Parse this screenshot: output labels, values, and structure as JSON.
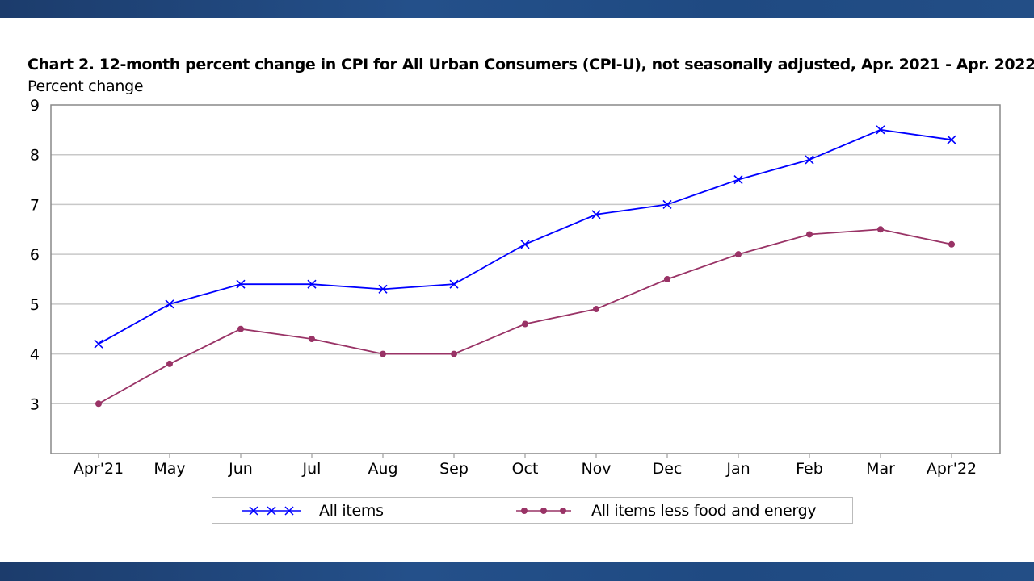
{
  "chart_data": {
    "type": "line",
    "title": "Chart 2. 12-month percent change in CPI for All Urban Consumers (CPI-U), not seasonally adjusted, Apr. 2021 - Apr. 2022",
    "xlabel": "",
    "ylabel": "Percent change",
    "categories": [
      "Apr'21",
      "May",
      "Jun",
      "Jul",
      "Aug",
      "Sep",
      "Oct",
      "Nov",
      "Dec",
      "Jan",
      "Feb",
      "Mar",
      "Apr'22"
    ],
    "ylim": [
      2,
      9
    ],
    "yticks": [
      3,
      4,
      5,
      6,
      7,
      8,
      9
    ],
    "grid": true,
    "legend_position": "bottom",
    "series": [
      {
        "name": "All items",
        "color": "#0000ff",
        "marker": "x",
        "values": [
          4.2,
          5.0,
          5.4,
          5.4,
          5.3,
          5.4,
          6.2,
          6.8,
          7.0,
          7.5,
          7.9,
          8.5,
          8.3
        ]
      },
      {
        "name": "All items less food and energy",
        "color": "#993366",
        "marker": "circle",
        "values": [
          3.0,
          3.8,
          4.5,
          4.3,
          4.0,
          4.0,
          4.6,
          4.9,
          5.5,
          6.0,
          6.4,
          6.5,
          6.2
        ]
      }
    ]
  },
  "theme": {
    "band_color": "#1f4a82"
  }
}
